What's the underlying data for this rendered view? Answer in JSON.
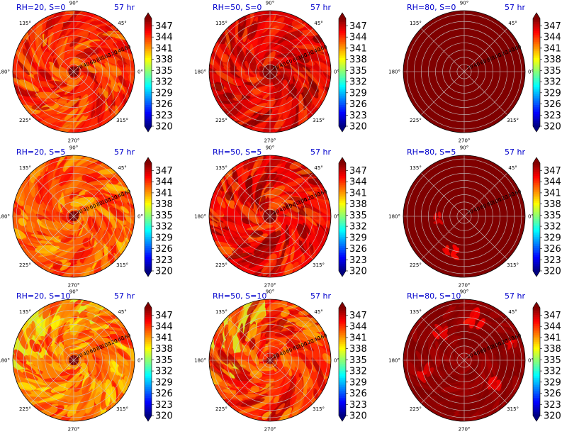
{
  "figure": {
    "colormap": "jet",
    "colors": {
      "dark_red": "#800000",
      "grid": "#c8c8c8",
      "title": "#0000cc"
    }
  },
  "chart_data": [
    {
      "type": "heatmap",
      "projection": "polar",
      "title": "RH=20, S=0",
      "time_label": "57 hr",
      "angle_ticks": [
        "0°",
        "45°",
        "90°",
        "135°",
        "180°",
        "225°",
        "270°",
        "315°"
      ],
      "radial_ticks": [
        20,
        40,
        60,
        80,
        100,
        120,
        140,
        160
      ],
      "rlim": [
        0,
        170
      ],
      "colorbar": {
        "ticks": [
          320,
          323,
          326,
          329,
          332,
          335,
          338,
          341,
          344,
          347
        ],
        "vmin": 320,
        "vmax": 349,
        "extend": "both"
      },
      "field": {
        "mean": 344.3,
        "variability": 2.4,
        "core_value": 349,
        "core_radius": 15,
        "spirals": 0.8,
        "seed": 11
      }
    },
    {
      "type": "heatmap",
      "projection": "polar",
      "title": "RH=50, S=0",
      "time_label": "57 hr",
      "angle_ticks": [
        "0°",
        "45°",
        "90°",
        "135°",
        "180°",
        "225°",
        "270°",
        "315°"
      ],
      "radial_ticks": [
        20,
        40,
        60,
        80,
        100,
        120,
        140,
        160
      ],
      "rlim": [
        0,
        170
      ],
      "colorbar": {
        "ticks": [
          320,
          323,
          326,
          329,
          332,
          335,
          338,
          341,
          344,
          347
        ],
        "vmin": 320,
        "vmax": 349,
        "extend": "both"
      },
      "field": {
        "mean": 346.3,
        "variability": 2.2,
        "core_value": 349,
        "core_radius": 20,
        "spirals": 0.9,
        "seed": 23
      }
    },
    {
      "type": "heatmap",
      "projection": "polar",
      "title": "RH=80, S=0",
      "time_label": "57 hr",
      "angle_ticks": [
        "0°",
        "45°",
        "90°",
        "135°",
        "180°",
        "225°",
        "270°",
        "315°"
      ],
      "radial_ticks": [
        20,
        40,
        60,
        80,
        100,
        120,
        140,
        160
      ],
      "rlim": [
        0,
        170
      ],
      "colorbar": {
        "ticks": [
          320,
          323,
          326,
          329,
          332,
          335,
          338,
          341,
          344,
          347
        ],
        "vmin": 320,
        "vmax": 349,
        "extend": "both"
      },
      "field": {
        "mean": 349,
        "variability": 0.0,
        "core_value": 349,
        "core_radius": 0,
        "spirals": 0,
        "seed": 31
      }
    },
    {
      "type": "heatmap",
      "projection": "polar",
      "title": "RH=20, S=5",
      "time_label": "57 hr",
      "angle_ticks": [
        "0°",
        "45°",
        "90°",
        "135°",
        "180°",
        "225°",
        "270°",
        "315°"
      ],
      "radial_ticks": [
        20,
        40,
        60,
        80,
        100,
        120,
        140,
        160
      ],
      "rlim": [
        0,
        170
      ],
      "colorbar": {
        "ticks": [
          320,
          323,
          326,
          329,
          332,
          335,
          338,
          341,
          344,
          347
        ],
        "vmin": 320,
        "vmax": 349,
        "extend": "both"
      },
      "field": {
        "mean": 342.8,
        "variability": 2.2,
        "core_value": 349,
        "core_radius": 14,
        "spirals": 0.8,
        "seed": 47
      }
    },
    {
      "type": "heatmap",
      "projection": "polar",
      "title": "RH=50, S=5",
      "time_label": "57 hr",
      "angle_ticks": [
        "0°",
        "45°",
        "90°",
        "135°",
        "180°",
        "225°",
        "270°",
        "315°"
      ],
      "radial_ticks": [
        20,
        40,
        60,
        80,
        100,
        120,
        140,
        160
      ],
      "rlim": [
        0,
        170
      ],
      "colorbar": {
        "ticks": [
          320,
          323,
          326,
          329,
          332,
          335,
          338,
          341,
          344,
          347
        ],
        "vmin": 320,
        "vmax": 349,
        "extend": "both"
      },
      "field": {
        "mean": 345.6,
        "variability": 2.4,
        "core_value": 349,
        "core_radius": 18,
        "spirals": 0.9,
        "seed": 59
      }
    },
    {
      "type": "heatmap",
      "projection": "polar",
      "title": "RH=80, S=5",
      "time_label": "57 hr",
      "angle_ticks": [
        "0°",
        "45°",
        "90°",
        "135°",
        "180°",
        "225°",
        "270°",
        "315°"
      ],
      "radial_ticks": [
        20,
        40,
        60,
        80,
        100,
        120,
        140,
        160
      ],
      "rlim": [
        0,
        170
      ],
      "colorbar": {
        "ticks": [
          320,
          323,
          326,
          329,
          332,
          335,
          338,
          341,
          344,
          347
        ],
        "vmin": 320,
        "vmax": 349,
        "extend": "both"
      },
      "field": {
        "mean": 349,
        "variability": 0.0,
        "core_value": 349,
        "core_radius": 0,
        "spirals": 0,
        "seed": 61,
        "patches": [
          {
            "angle": 185,
            "r": 70,
            "value": 345,
            "size": 10
          },
          {
            "angle": 250,
            "r": 110,
            "value": 344,
            "size": 14
          }
        ]
      }
    },
    {
      "type": "heatmap",
      "projection": "polar",
      "title": "RH=20, S=10",
      "time_label": "57 hr",
      "angle_ticks": [
        "0°",
        "45°",
        "90°",
        "135°",
        "180°",
        "225°",
        "270°",
        "315°"
      ],
      "radial_ticks": [
        20,
        40,
        60,
        80,
        100,
        120,
        140,
        160
      ],
      "rlim": [
        0,
        170
      ],
      "colorbar": {
        "ticks": [
          320,
          323,
          326,
          329,
          332,
          335,
          338,
          341,
          344,
          347
        ],
        "vmin": 320,
        "vmax": 349,
        "extend": "both"
      },
      "field": {
        "mean": 341.8,
        "variability": 2.4,
        "core_value": 349,
        "core_radius": 14,
        "spirals": 0.8,
        "seed": 73,
        "outer_low": {
          "start_angle": 60,
          "end_angle": 190,
          "value": 337
        }
      }
    },
    {
      "type": "heatmap",
      "projection": "polar",
      "title": "RH=50, S=10",
      "time_label": "57 hr",
      "angle_ticks": [
        "0°",
        "45°",
        "90°",
        "135°",
        "180°",
        "225°",
        "270°",
        "315°"
      ],
      "radial_ticks": [
        20,
        40,
        60,
        80,
        100,
        120,
        140,
        160
      ],
      "rlim": [
        0,
        170
      ],
      "colorbar": {
        "ticks": [
          320,
          323,
          326,
          329,
          332,
          335,
          338,
          341,
          344,
          347
        ],
        "vmin": 320,
        "vmax": 349,
        "extend": "both"
      },
      "field": {
        "mean": 344.2,
        "variability": 2.6,
        "core_value": 349,
        "core_radius": 10,
        "spirals": 0.7,
        "seed": 89,
        "outer_low": {
          "start_angle": 95,
          "end_angle": 215,
          "value": 337
        }
      }
    },
    {
      "type": "heatmap",
      "projection": "polar",
      "title": "RH=80, S=10",
      "time_label": "57 hr",
      "angle_ticks": [
        "0°",
        "45°",
        "90°",
        "135°",
        "180°",
        "225°",
        "270°",
        "315°"
      ],
      "radial_ticks": [
        20,
        40,
        60,
        80,
        100,
        120,
        140,
        160
      ],
      "rlim": [
        0,
        170
      ],
      "colorbar": {
        "ticks": [
          320,
          323,
          326,
          329,
          332,
          335,
          338,
          341,
          344,
          347
        ],
        "vmin": 320,
        "vmax": 349,
        "extend": "both"
      },
      "field": {
        "mean": 348.6,
        "variability": 0.6,
        "core_value": 349,
        "core_radius": 0,
        "spirals": 0.6,
        "seed": 97,
        "patches": [
          {
            "angle": 75,
            "r": 120,
            "value": 344,
            "size": 18
          },
          {
            "angle": 130,
            "r": 100,
            "value": 345,
            "size": 14
          },
          {
            "angle": 200,
            "r": 110,
            "value": 345,
            "size": 16
          },
          {
            "angle": 320,
            "r": 110,
            "value": 345,
            "size": 16
          },
          {
            "angle": 20,
            "r": 140,
            "value": 345,
            "size": 12
          }
        ]
      }
    }
  ]
}
